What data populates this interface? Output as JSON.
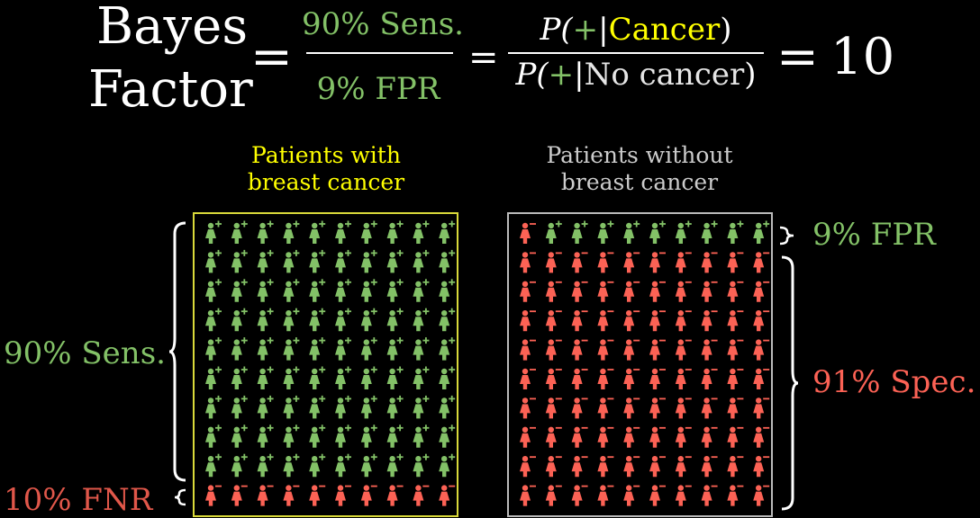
{
  "equation": {
    "title_line1": "Bayes",
    "title_line2": "Factor",
    "eq1": "=",
    "frac1_numerator": "90% Sens.",
    "frac1_denominator": "9% FPR",
    "eq2": "=",
    "frac2_num_p": "P(",
    "frac2_num_plus": "+",
    "frac2_num_bar": "|",
    "frac2_num_cond": "Cancer",
    "frac2_num_close": ")",
    "frac2_den_p": "P(",
    "frac2_den_plus": "+",
    "frac2_den_bar": "|",
    "frac2_den_cond": "No cancer",
    "frac2_den_close": ")",
    "eq3": "=",
    "result": "10"
  },
  "groups": {
    "with_cancer": {
      "label_line1": "Patients with",
      "label_line2": "breast cancer",
      "border_color": "#d9d93a",
      "positive_rows": 9,
      "negative_rows": 1
    },
    "without_cancer": {
      "label_line1": "Patients without",
      "label_line2": "breast cancer",
      "border_color": "#bbbbbb",
      "first_row_positive_count": 9,
      "negative_rows": 10
    }
  },
  "grid": {
    "columns": 10,
    "rows": 10
  },
  "labels": {
    "sens": "90% Sens.",
    "fnr": "10% FNR",
    "fpr": "9% FPR",
    "spec": "91% Spec."
  },
  "colors": {
    "positive": "#83c167",
    "negative": "#fc6255",
    "highlight": "#ffff00",
    "brace": "#ffffff"
  },
  "icons": {
    "positive_sign": "+",
    "negative_sign": "−",
    "person": "person-icon"
  }
}
